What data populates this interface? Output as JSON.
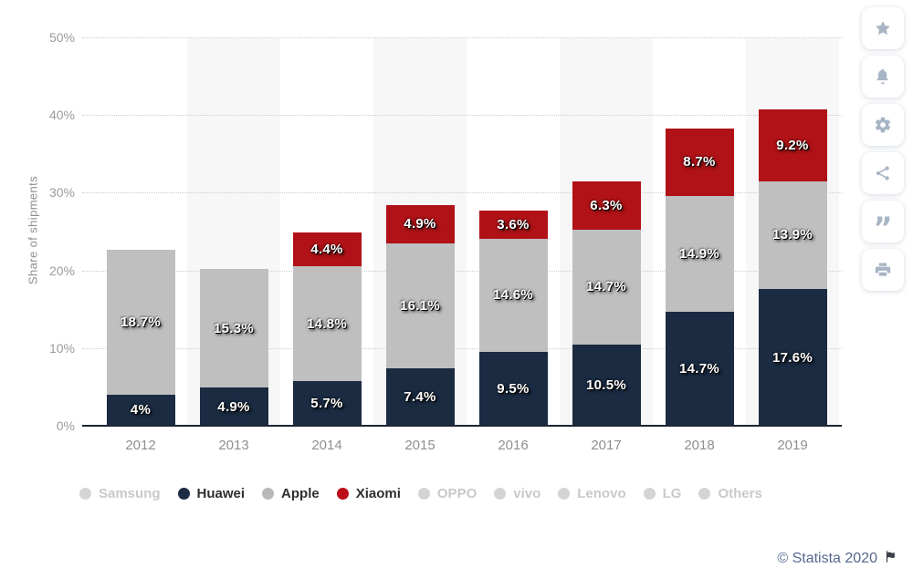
{
  "chart_data": {
    "type": "bar",
    "stacked": true,
    "title": "",
    "ylabel": "Share of shipments",
    "xlabel": "",
    "ylim": [
      0,
      50
    ],
    "grid": "horizontal-dotted",
    "legend_position": "bottom",
    "categories": [
      "2012",
      "2013",
      "2014",
      "2015",
      "2016",
      "2017",
      "2018",
      "2019"
    ],
    "series": [
      {
        "name": "Huawei",
        "color": "#1a2b42",
        "values": [
          4,
          4.9,
          5.7,
          7.4,
          9.5,
          10.5,
          14.7,
          17.6
        ],
        "labels": [
          "4%",
          "4.9%",
          "5.7%",
          "7.4%",
          "9.5%",
          "10.5%",
          "14.7%",
          "17.6%"
        ]
      },
      {
        "name": "Apple",
        "color": "#bfbfbf",
        "values": [
          18.7,
          15.3,
          14.8,
          16.1,
          14.6,
          14.7,
          14.9,
          13.9
        ],
        "labels": [
          "18.7%",
          "15.3%",
          "14.8%",
          "16.1%",
          "14.6%",
          "14.7%",
          "14.9%",
          "13.9%"
        ]
      },
      {
        "name": "Xiaomi",
        "color": "#b01217",
        "values": [
          0,
          0,
          4.4,
          4.9,
          3.6,
          6.3,
          8.7,
          9.2
        ],
        "labels": [
          "",
          "",
          "4.4%",
          "4.9%",
          "3.6%",
          "6.3%",
          "8.7%",
          "9.2%"
        ]
      }
    ],
    "yticks": [
      {
        "value": 0,
        "label": "0%"
      },
      {
        "value": 10,
        "label": "10%"
      },
      {
        "value": 20,
        "label": "20%"
      },
      {
        "value": 30,
        "label": "30%"
      },
      {
        "value": 40,
        "label": "40%"
      },
      {
        "value": 50,
        "label": "50%"
      }
    ],
    "legend": [
      {
        "label": "Samsung",
        "color": "#d4d4d4",
        "active": false
      },
      {
        "label": "Huawei",
        "color": "#1a2b42",
        "active": true
      },
      {
        "label": "Apple",
        "color": "#b9b9b9",
        "active": true
      },
      {
        "label": "Xiaomi",
        "color": "#bc0d18",
        "active": true
      },
      {
        "label": "OPPO",
        "color": "#d4d4d4",
        "active": false
      },
      {
        "label": "vivo",
        "color": "#d4d4d4",
        "active": false
      },
      {
        "label": "Lenovo",
        "color": "#d4d4d4",
        "active": false
      },
      {
        "label": "LG",
        "color": "#d4d4d4",
        "active": false
      },
      {
        "label": "Others",
        "color": "#d4d4d4",
        "active": false
      }
    ]
  },
  "toolbar": {
    "icons": [
      {
        "name": "favorite-star"
      },
      {
        "name": "notifications-bell"
      },
      {
        "name": "settings-gear"
      },
      {
        "name": "share"
      },
      {
        "name": "cite-quote"
      },
      {
        "name": "print"
      }
    ]
  },
  "footer": {
    "credit": "© Statista 2020"
  },
  "colors": {
    "navy": "#1a2b42",
    "bar_gray": "#bfbfbf",
    "accent_red": "#b01217",
    "stripe": "#f7f7f8",
    "grid": "#cccccc",
    "axis_line": "#1c2634",
    "inactive_text": "#c9c9c9",
    "icon": "#a8b5c5",
    "credit": "#56688f"
  }
}
